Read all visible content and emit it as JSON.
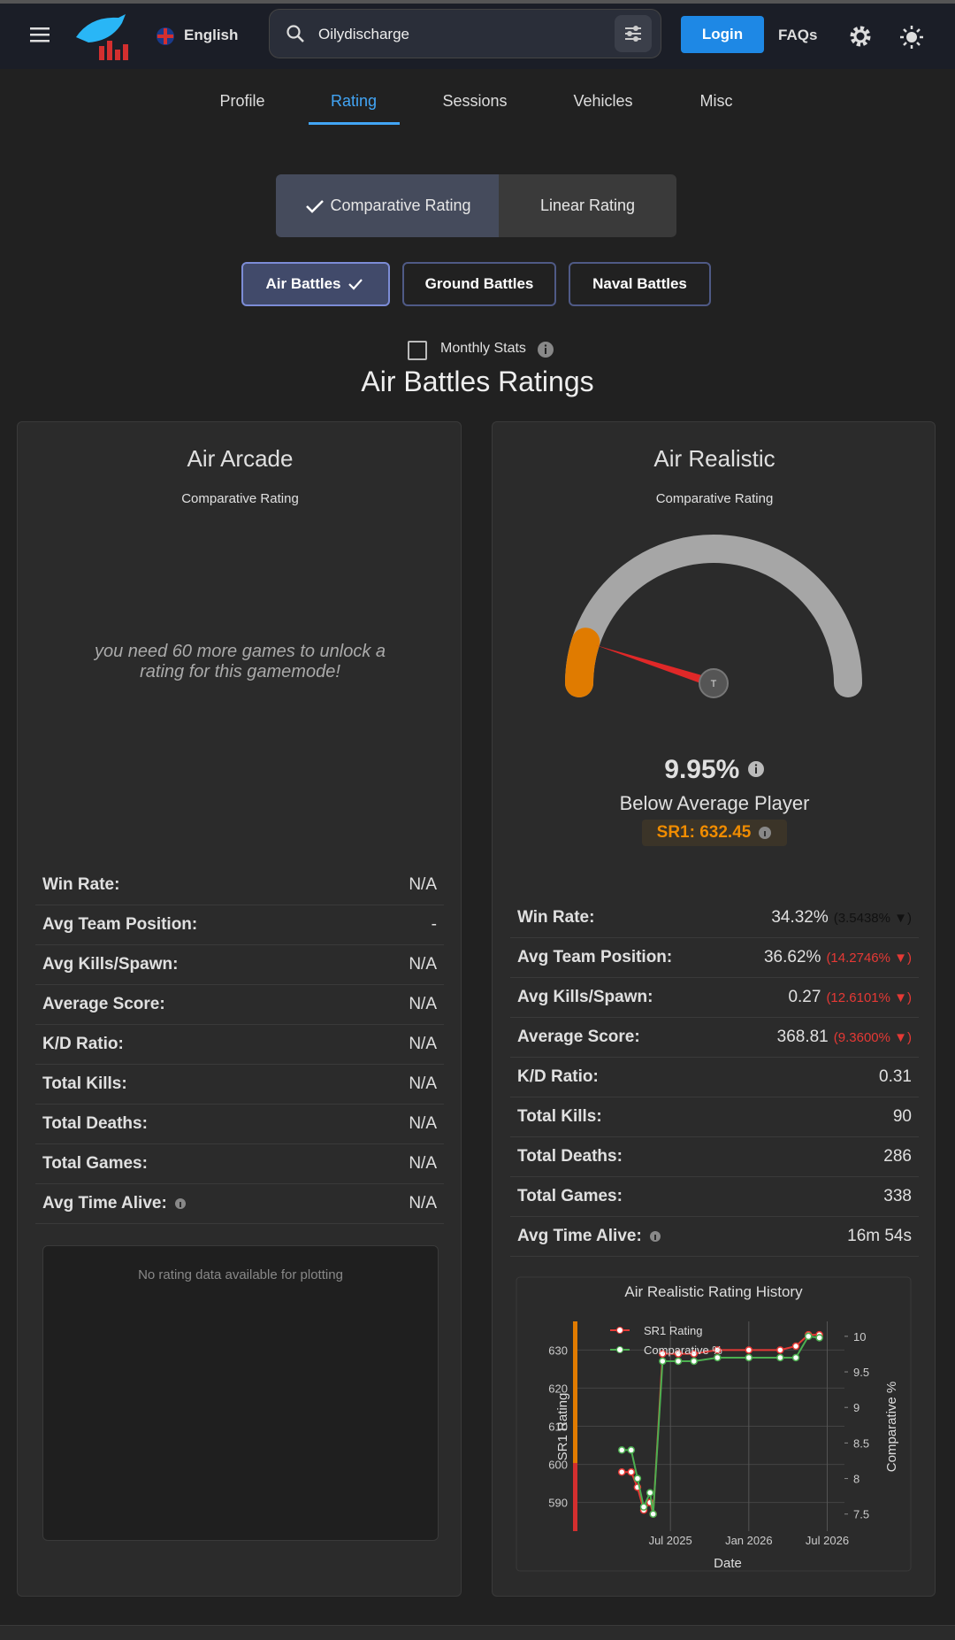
{
  "nav": {
    "language": "English",
    "search": "Oilydischarge",
    "login": "Login",
    "faqs": "FAQs"
  },
  "tabs": [
    "Profile",
    "Rating",
    "Sessions",
    "Vehicles",
    "Misc"
  ],
  "rating_modes": [
    "Comparative Rating",
    "Linear Rating"
  ],
  "battle_types": [
    "Air Battles",
    "Ground Battles",
    "Naval Battles"
  ],
  "monthly_stats": "Monthly Stats",
  "section_title": "Air Battles Ratings",
  "cards": [
    {
      "title": "Air Arcade",
      "subtitle": "Comparative Rating",
      "message": "you need 60 more games to unlock a rating for this gamemode!",
      "stats": [
        {
          "label": "Win Rate:",
          "value": "N/A"
        },
        {
          "label": "Avg Team Position:",
          "value": "-"
        },
        {
          "label": "Avg Kills/Spawn:",
          "value": "N/A"
        },
        {
          "label": "Average Score:",
          "value": "N/A"
        },
        {
          "label": "K/D Ratio:",
          "value": "N/A"
        },
        {
          "label": "Total Kills:",
          "value": "N/A"
        },
        {
          "label": "Total Deaths:",
          "value": "N/A"
        },
        {
          "label": "Total Games:",
          "value": "N/A"
        },
        {
          "label": "Avg Time Alive:",
          "value": "N/A"
        }
      ],
      "plot_message": "No rating data available for plotting"
    },
    {
      "title": "Air Realistic",
      "subtitle": "Comparative Rating",
      "gauge": {
        "value": 9.95,
        "label": "9.95%",
        "range": [
          0,
          100
        ]
      },
      "rating_label": "Below Average Player",
      "sr1": "SR1: 632.45",
      "stats": [
        {
          "label": "Win Rate:",
          "value": "34.32%",
          "change": "(3.5438% ▼)",
          "change_color": "#111111"
        },
        {
          "label": "Avg Team Position:",
          "value": "36.62%",
          "change": "(14.2746% ▼)",
          "change_color": "#e53935"
        },
        {
          "label": "Avg Kills/Spawn:",
          "value": "0.27",
          "change": "(12.6101% ▼)",
          "change_color": "#e53935"
        },
        {
          "label": "Average Score:",
          "value": "368.81",
          "change": "(9.3600% ▼)",
          "change_color": "#e53935"
        },
        {
          "label": "K/D Ratio:",
          "value": "0.31"
        },
        {
          "label": "Total Kills:",
          "value": "90"
        },
        {
          "label": "Total Deaths:",
          "value": "286"
        },
        {
          "label": "Total Games:",
          "value": "338"
        },
        {
          "label": "Avg Time Alive:",
          "value": "16m 54s"
        }
      ],
      "chart": {
        "type": "line",
        "title": "Air Realistic Rating History",
        "x_label": "Date",
        "y_label": "SR1 Rating",
        "y2_label": "Comparative %",
        "x": [
          2025.19,
          2025.25,
          2025.29,
          2025.33,
          2025.37,
          2025.39,
          2025.45,
          2025.55,
          2025.65,
          2025.8,
          2026.0,
          2026.2,
          2026.3,
          2026.38,
          2026.45
        ],
        "xlim": [
          2024.89,
          2026.61
        ],
        "xticks": [
          {
            "value": 2025.5,
            "label": "Jul 2025"
          },
          {
            "value": 2026.0,
            "label": "Jan 2026"
          },
          {
            "value": 2026.5,
            "label": "Jul 2026"
          }
        ],
        "ylim": [
          582.5,
          637.5
        ],
        "yticks": [
          590,
          600,
          610,
          620,
          630
        ],
        "y2lim": [
          7.26,
          10.21
        ],
        "y2ticks": [
          7.5,
          8,
          8.5,
          9,
          9.5,
          10
        ],
        "series": [
          {
            "name": "SR1 Rating",
            "color": "#e53935",
            "values": [
              598,
              598,
              594,
              588,
              590,
              587,
              629,
              629,
              629,
              630,
              630,
              630,
              631,
              634,
              634
            ]
          },
          {
            "name": "Comparative %",
            "color": "#4caf50",
            "axis": "y2",
            "values": [
              8.4,
              8.4,
              8.0,
              7.6,
              7.8,
              7.5,
              9.65,
              9.65,
              9.65,
              9.7,
              9.7,
              9.7,
              9.7,
              10.0,
              9.98
            ]
          }
        ]
      }
    }
  ]
}
